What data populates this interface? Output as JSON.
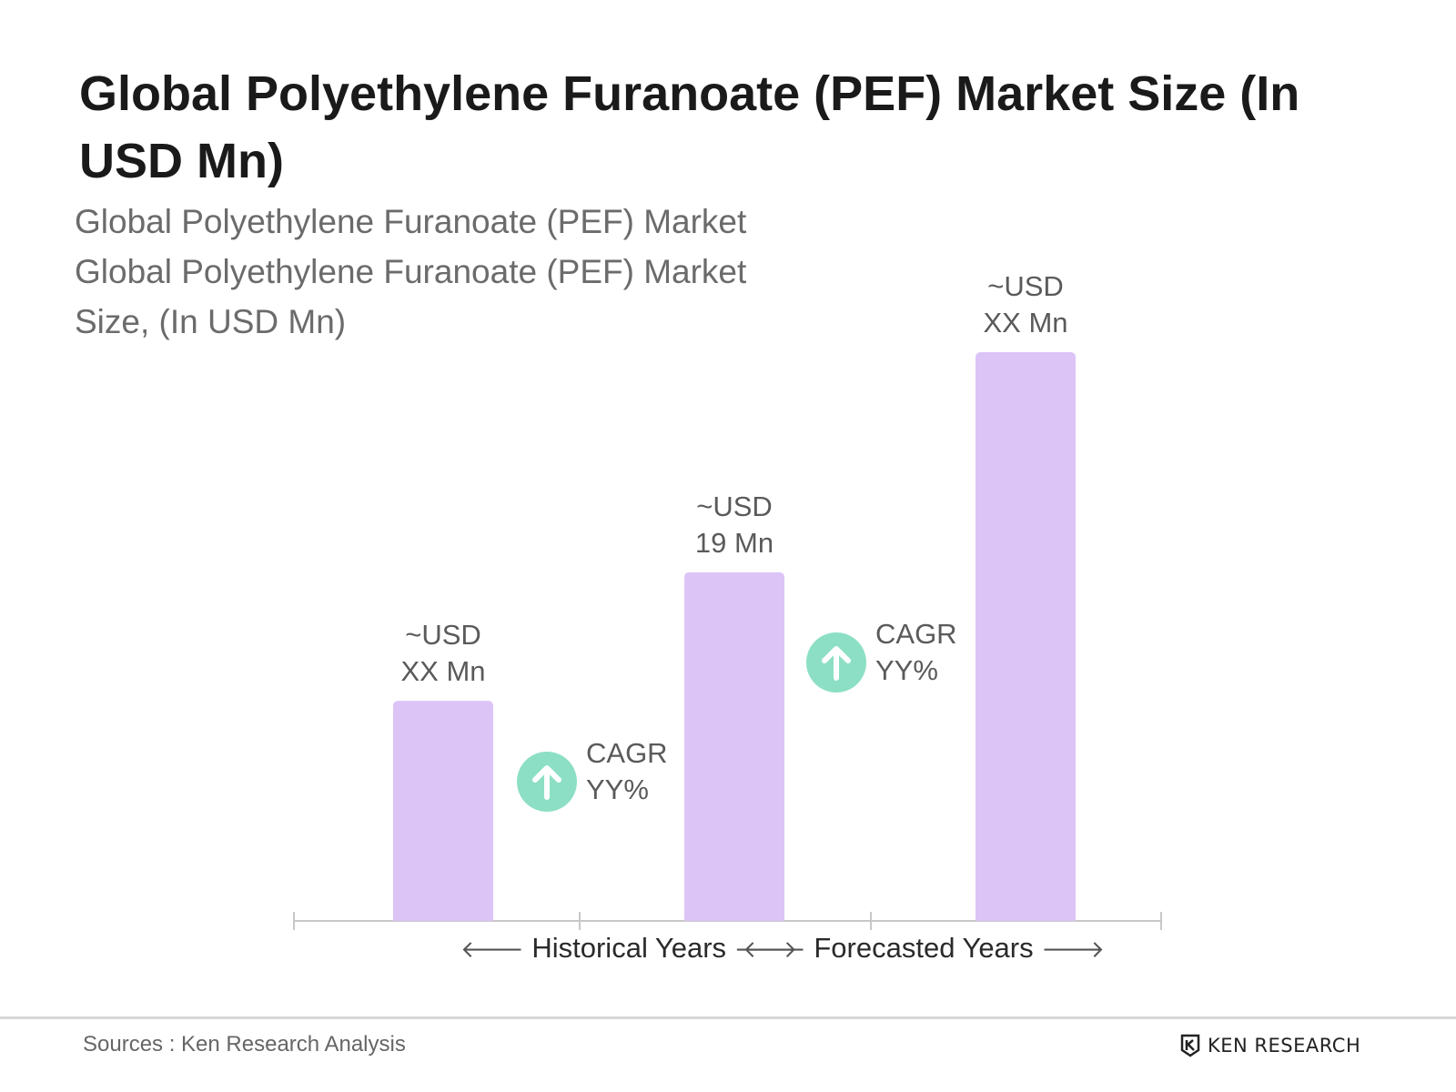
{
  "title": "Global Polyethylene Furanoate (PEF) Market Size (In USD Mn)",
  "subtitle_lines": [
    "Global Polyethylene Furanoate (PEF) Market",
    "Global Polyethylene Furanoate (PEF) Market",
    "Size, (In USD Mn)"
  ],
  "chart_data": {
    "type": "bar",
    "categories": [
      "",
      "",
      ""
    ],
    "values": [
      12,
      19,
      31
    ],
    "value_note": "Bar heights are relative; only the middle bar prints a number.",
    "data_labels": [
      [
        "~USD",
        "XX Mn"
      ],
      [
        "~USD",
        "19 Mn"
      ],
      [
        "~USD",
        "XX Mn"
      ]
    ],
    "bar_color": "#dcc4f7",
    "annotations": [
      {
        "text": [
          "CAGR",
          "YY%"
        ],
        "icon": "arrow-up-icon",
        "between": [
          0,
          1
        ]
      },
      {
        "text": [
          "CAGR",
          "YY%"
        ],
        "icon": "arrow-up-icon",
        "between": [
          1,
          2
        ]
      }
    ],
    "periods": [
      {
        "label": "Historical Years"
      },
      {
        "label": "Forecasted Years"
      }
    ],
    "grid": false,
    "legend": "none"
  },
  "colors": {
    "bar": "#dcc4f7",
    "cagr_icon": "#8cdfc4",
    "axis": "#c8c8c8"
  },
  "footer": {
    "source": "Sources : Ken Research Analysis",
    "logo_text": "KEN RESEARCH",
    "logo_icon": "ken-research-logo-icon"
  }
}
